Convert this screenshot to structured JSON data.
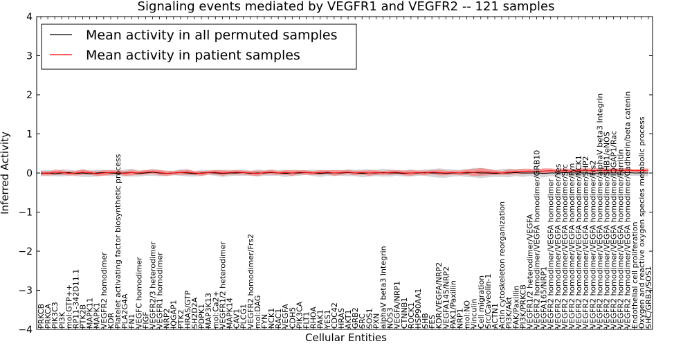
{
  "chart_data": {
    "type": "line",
    "title": "Signaling events mediated by VEGFR1 and VEGFR2 -- 121 samples",
    "xlabel": "Cellular Entities",
    "ylabel": "Inferred Activity",
    "ylim": [
      -4,
      4
    ],
    "yticks": [
      "−4",
      "−3",
      "−2",
      "−1",
      "0",
      "1",
      "2",
      "3",
      "4"
    ],
    "legend": {
      "position": "top-left",
      "entries": [
        {
          "label": "Mean activity in all permuted samples",
          "color": "#000000"
        },
        {
          "label": "Mean activity in patient samples",
          "color": "#ff0000"
        }
      ]
    },
    "categories": [
      "PRKCB",
      "PRKCA",
      "PIK3C3",
      "PI3K",
      "mol:GTP++",
      "RP11-342D11.1",
      "PTK2B",
      "MAPK11",
      "MAPK1",
      "VEGFR2 homodimer",
      "KDR",
      "Platelet activating factor biosynthetic process",
      "PLA2G4A",
      "FN1",
      "VEGFC homodimer",
      "FIGF",
      "VEGFR2/3 heterodimer",
      "VEGFR1 homodimer",
      "NRP2",
      "IQGAP1",
      "PTK2",
      "HRAS/GTP",
      "SH2D2A",
      "PDPK1",
      "MAP3K13",
      "mol:Ca2+",
      "VEGFR1/2 heterodimer",
      "MAPK14",
      "CAV1",
      "PLCG1",
      "VEGFR2 homodimer/Frs2",
      "mol:DAG",
      "FYN",
      "NCK1",
      "RAC1",
      "VEGFA",
      "CDH5",
      "PIK3CA",
      "FLT1",
      "RHOA",
      "PAK1",
      "YES1",
      "CDC42",
      "HRAS",
      "AKT1",
      "GRB2",
      "SRC",
      "SOS1",
      "PXN",
      "alphaV beta3 Integrin",
      "NOS3",
      "VEGFA/NRP1",
      "CTNNB1",
      "ROCK1",
      "HSP90AA1",
      "SHB",
      "FES",
      "KDR/VEGFA/NRP2",
      "VEGFA145/NRP2",
      "PAK1/Paxillin",
      "NRP1",
      "mol:NO",
      "Vinculin",
      "Cell migration",
      "Src/Caveolin-1",
      "ACTN1",
      "Actin cytoskeleton reorganization",
      "PI3K/Akt",
      "FAK/Paxillin",
      "PI3K/PRKCB",
      "VEGFR1/2 heterodimer/VEGFA",
      "VEGFR2 homodimer/VEGFA homodimer/GRB10",
      "VEGFA165/NRP1",
      "VEGFR2 homodimer/VEGFA homodimer",
      "VEGFR2 homodimer/VEGFA homodimer/Yes",
      "VEGFR2 homodimer/VEGFA homodimer/Src",
      "VEGFR2 homodimer/VEGFA homodimer/Fyn",
      "VEGFR2 homodimer/VEGFA homodimer/NCK1",
      "VEGFR2 homodimer/VEGFA homodimer/SHP2",
      "VEGFR2 homodimer/VEGFA homodimer/Frs2",
      "VEGFR2 homodimer/VEGFA homodimer/alphaV beta3 Integrin",
      "VEGFR2 homodimer/VEGFA homodimer/SHB1/eNOS",
      "VEGFR2 homodimer/VEGFA homodimer/IQGAP1/Rac",
      "VEGFR2 homodimer/VEGFA homodimer/Ferritin",
      "VEGFR2 homodimer/VEGFA homodimer/Cadherin/beta catenin",
      "Endothelial cell proliferation",
      "Oxygen and reactive oxygen species metabolic process",
      "SHC/GRB2/SOS1"
    ],
    "series": [
      {
        "name": "Mean activity in all permuted samples",
        "color": "#000000",
        "values": [
          -0.01,
          0.0,
          -0.02,
          0.0,
          0.01,
          -0.01,
          0.0,
          -0.02,
          0.0,
          0.01,
          0.0,
          -0.01,
          0.0,
          0.01,
          -0.01,
          0.0,
          0.02,
          0.0,
          -0.01,
          0.0,
          0.01,
          0.0,
          -0.02,
          0.0,
          0.01,
          0.0,
          -0.01,
          0.0,
          0.0,
          0.01,
          -0.01,
          0.0,
          0.0,
          0.01,
          0.0,
          -0.01,
          0.0,
          0.0,
          0.01,
          0.0,
          -0.01,
          0.0,
          0.0,
          0.0,
          0.01,
          0.0,
          -0.01,
          0.0,
          0.0,
          0.01,
          0.0,
          0.0,
          -0.01,
          0.0,
          0.0,
          0.01,
          0.0,
          0.0,
          -0.01,
          0.0,
          0.0,
          0.0,
          0.01,
          0.0,
          0.0,
          -0.01,
          0.0,
          0.0,
          0.01,
          0.0,
          0.0,
          0.0,
          -0.01,
          0.0,
          0.0,
          0.01,
          0.0,
          0.0,
          0.0,
          -0.01,
          0.0,
          0.0,
          0.0,
          0.0,
          0.01,
          0.0,
          0.0,
          0.0
        ]
      },
      {
        "name": "Mean activity in patient samples",
        "color": "#ff0000",
        "values": [
          0.0,
          -0.01,
          0.02,
          0.01,
          -0.01,
          0.0,
          0.02,
          0.01,
          -0.02,
          0.0,
          0.01,
          0.02,
          -0.01,
          0.01,
          0.0,
          0.02,
          0.03,
          0.01,
          -0.01,
          0.0,
          0.01,
          0.02,
          0.0,
          -0.01,
          0.01,
          0.02,
          0.0,
          0.01,
          0.02,
          0.01,
          0.0,
          -0.01,
          0.01,
          0.02,
          0.0,
          0.01,
          0.0,
          0.02,
          0.01,
          0.0,
          0.01,
          0.02,
          0.0,
          0.01,
          0.02,
          0.0,
          0.01,
          0.0,
          0.01,
          0.0,
          0.01,
          0.02,
          0.0,
          0.0,
          0.01,
          0.0,
          0.02,
          0.01,
          0.0,
          0.01,
          0.0,
          0.02,
          0.01,
          0.03,
          0.02,
          0.01,
          0.0,
          0.02,
          0.03,
          0.04,
          0.05,
          0.04,
          0.05,
          0.06,
          0.05,
          0.06,
          0.05,
          0.06,
          0.07,
          0.06,
          0.07,
          0.06,
          0.07,
          0.06,
          0.07,
          0.06,
          0.06,
          0.07
        ]
      }
    ],
    "bands": {
      "permuted_half_width": [
        0.07,
        0.08,
        0.06,
        0.09,
        0.08,
        0.07,
        0.1,
        0.08,
        0.09,
        0.07,
        0.08,
        0.06,
        0.09,
        0.1,
        0.08,
        0.07,
        0.09,
        0.08,
        0.07,
        0.06,
        0.08,
        0.09,
        0.07,
        0.08,
        0.06,
        0.07,
        0.09,
        0.08,
        0.07,
        0.08,
        0.06,
        0.09,
        0.07,
        0.08,
        0.07,
        0.09,
        0.08,
        0.07,
        0.06,
        0.08,
        0.09,
        0.07,
        0.08,
        0.07,
        0.09,
        0.08,
        0.1,
        0.09,
        0.08,
        0.1,
        0.09,
        0.07,
        0.08,
        0.09,
        0.07,
        0.08,
        0.1,
        0.12,
        0.11,
        0.09,
        0.08,
        0.1,
        0.12,
        0.13,
        0.11,
        0.09,
        0.1,
        0.11,
        0.09,
        0.1,
        0.08,
        0.09,
        0.1,
        0.08,
        0.09,
        0.08,
        0.09,
        0.1,
        0.08,
        0.09,
        0.08,
        0.09,
        0.08,
        0.09,
        0.08,
        0.07,
        0.08,
        0.08
      ],
      "patient_half_width": [
        0.06,
        0.05,
        0.07,
        0.06,
        0.05,
        0.06,
        0.07,
        0.05,
        0.06,
        0.07,
        0.06,
        0.05,
        0.06,
        0.07,
        0.05,
        0.06,
        0.05,
        0.07,
        0.06,
        0.05,
        0.06,
        0.07,
        0.05,
        0.06,
        0.05,
        0.06,
        0.07,
        0.05,
        0.06,
        0.05,
        0.06,
        0.07,
        0.05,
        0.06,
        0.05,
        0.06,
        0.07,
        0.05,
        0.06,
        0.05,
        0.06,
        0.05,
        0.07,
        0.06,
        0.05,
        0.06,
        0.05,
        0.07,
        0.06,
        0.05,
        0.06,
        0.05,
        0.06,
        0.07,
        0.05,
        0.06,
        0.05,
        0.07,
        0.06,
        0.05,
        0.06,
        0.07,
        0.09,
        0.1,
        0.08,
        0.06,
        0.05,
        0.07,
        0.06,
        0.07,
        0.06,
        0.05,
        0.07,
        0.06,
        0.05,
        0.06,
        0.05,
        0.06,
        0.05,
        0.06,
        0.05,
        0.06,
        0.05,
        0.06,
        0.05,
        0.04,
        0.05,
        0.05
      ]
    }
  }
}
